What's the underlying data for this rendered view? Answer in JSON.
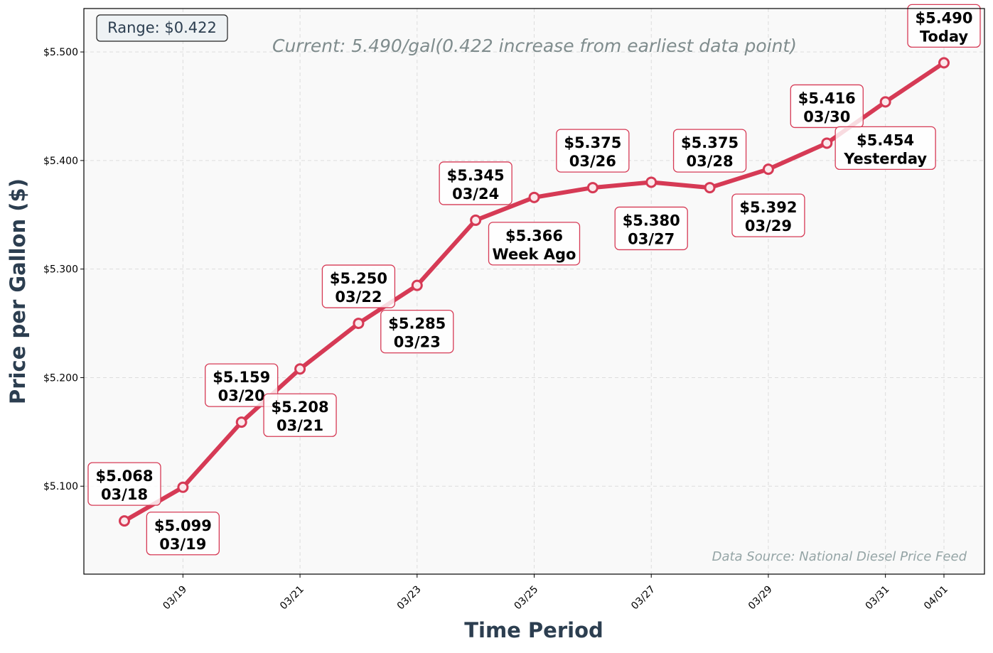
{
  "chart_data": {
    "type": "line",
    "xlabel": "Time Period",
    "ylabel": "Price per Gallon ($)",
    "x": [
      "03/18",
      "03/19",
      "03/20",
      "03/21",
      "03/22",
      "03/23",
      "03/24",
      "03/25",
      "03/26",
      "03/27",
      "03/28",
      "03/29",
      "03/30",
      "03/31",
      "04/01"
    ],
    "values": [
      5.068,
      5.099,
      5.159,
      5.208,
      5.25,
      5.285,
      5.345,
      5.366,
      5.375,
      5.38,
      5.375,
      5.392,
      5.416,
      5.454,
      5.49
    ],
    "point_labels": [
      [
        "$5.068",
        "03/18"
      ],
      [
        "$5.099",
        "03/19"
      ],
      [
        "$5.159",
        "03/20"
      ],
      [
        "$5.208",
        "03/21"
      ],
      [
        "$5.250",
        "03/22"
      ],
      [
        "$5.285",
        "03/23"
      ],
      [
        "$5.345",
        "03/24"
      ],
      [
        "$5.366",
        "Week Ago"
      ],
      [
        "$5.375",
        "03/26"
      ],
      [
        "$5.380",
        "03/27"
      ],
      [
        "$5.375",
        "03/28"
      ],
      [
        "$5.392",
        "03/29"
      ],
      [
        "$5.416",
        "03/30"
      ],
      [
        "$5.454",
        "Yesterday"
      ],
      [
        "$5.490",
        "Today"
      ]
    ],
    "xticks": [
      "03/19",
      "03/21",
      "03/23",
      "03/25",
      "03/27",
      "03/29",
      "03/31",
      "04/01"
    ],
    "yticks": [
      5.1,
      5.2,
      5.3,
      5.4,
      5.5
    ],
    "ytick_labels": [
      "$5.100",
      "$5.200",
      "$5.300",
      "$5.400",
      "$5.500"
    ],
    "ylim": [
      5.019,
      5.54
    ],
    "grid": true,
    "line_color": "#d63a55",
    "range_label": "Range: $0.422",
    "annotation": "Current: 5.490/gal(0.422 increase from earliest data point)",
    "source": "Data Source: National Diesel Price Feed"
  }
}
